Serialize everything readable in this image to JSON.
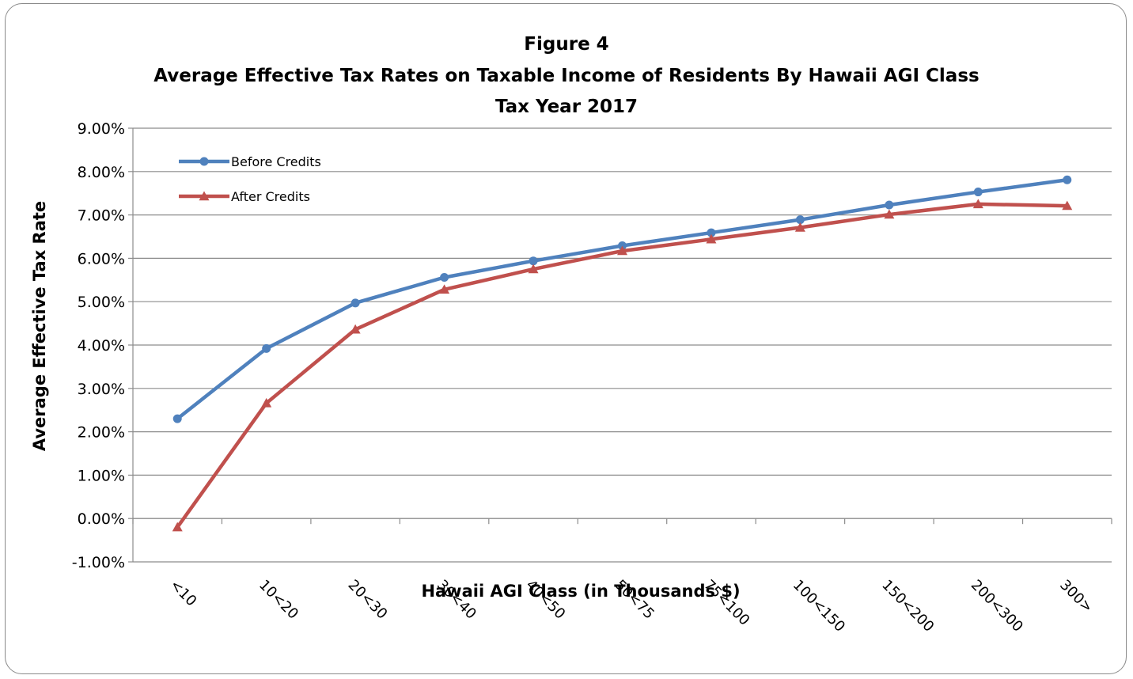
{
  "chart_data": {
    "type": "line",
    "title_lines": [
      "Figure 4",
      "Average Effective Tax Rates on Taxable Income of Residents By Hawaii AGI Class",
      "Tax Year 2017"
    ],
    "xlabel": "Hawaii AGI Class (in Thousands $)",
    "ylabel": "Average Effective Tax Rate",
    "categories": [
      "<10",
      "10<20",
      "20<30",
      "30<40",
      "40<50",
      "50<75",
      "75<100",
      "100<150",
      "150<200",
      "200<300",
      "300>"
    ],
    "ylim": [
      -0.01,
      0.09
    ],
    "yticks": [
      -0.01,
      0.0,
      0.01,
      0.02,
      0.03,
      0.04,
      0.05,
      0.06,
      0.07,
      0.08,
      0.09
    ],
    "ytick_labels": [
      "-1.00%",
      "0.00%",
      "1.00%",
      "2.00%",
      "3.00%",
      "4.00%",
      "5.00%",
      "6.00%",
      "7.00%",
      "8.00%",
      "9.00%"
    ],
    "grid": true,
    "legend_position": "top-left",
    "series": [
      {
        "name": "Before Credits",
        "color": "#4F81BD",
        "marker": "circle",
        "values": [
          0.023,
          0.0392,
          0.0497,
          0.0556,
          0.0594,
          0.0629,
          0.0659,
          0.0689,
          0.0723,
          0.0753,
          0.0781
        ]
      },
      {
        "name": "After Credits",
        "color": "#C0504D",
        "marker": "triangle",
        "values": [
          -0.002,
          0.0266,
          0.0436,
          0.0528,
          0.0575,
          0.0617,
          0.0644,
          0.0671,
          0.0701,
          0.0725,
          0.0721
        ]
      }
    ]
  }
}
